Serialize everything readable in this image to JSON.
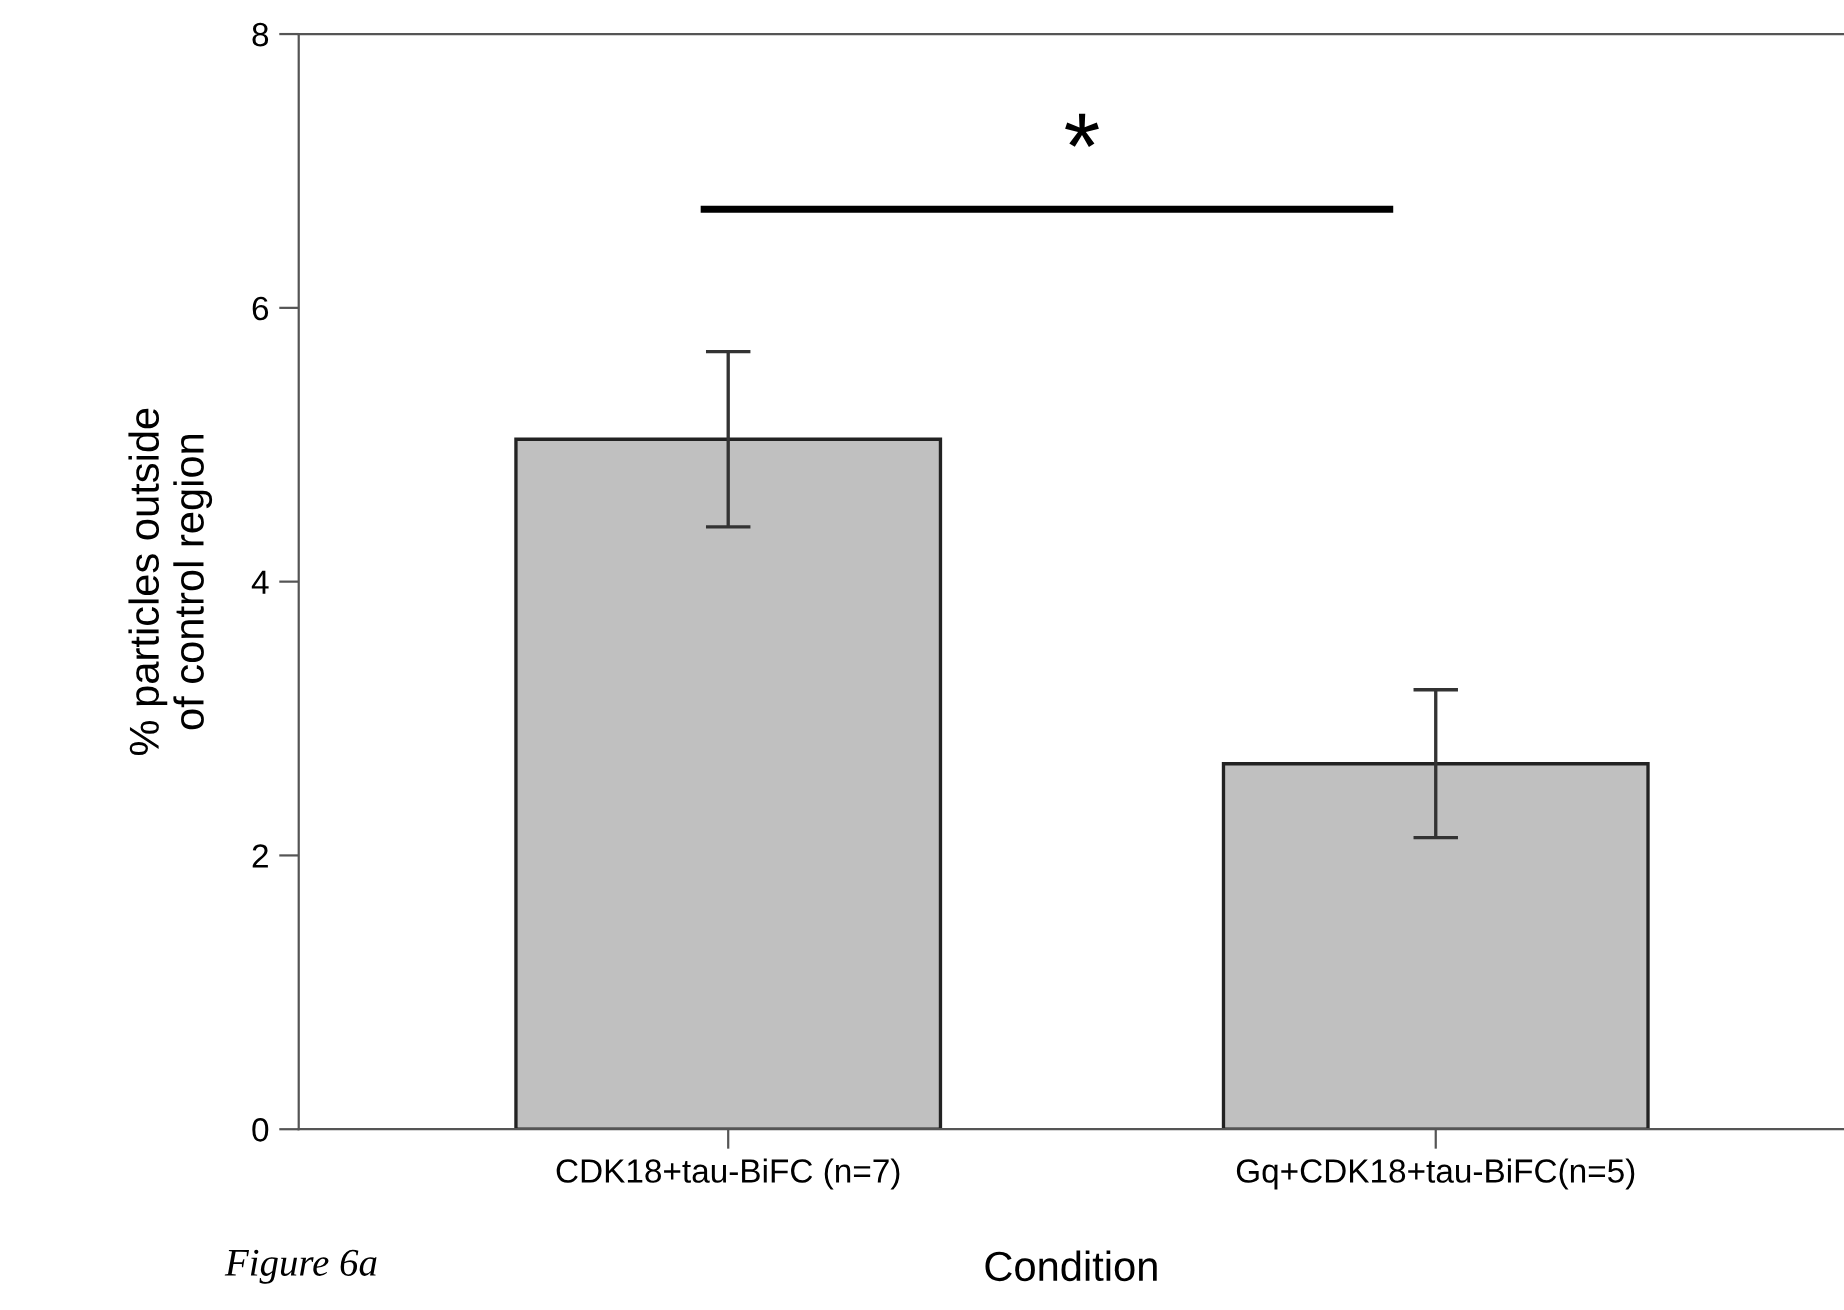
{
  "chart_data": {
    "type": "bar",
    "xlabel": "Condition",
    "ylabel": "% particles outside\nof control region",
    "categories": [
      "CDK18+tau-BiFC (n=7)",
      "Gq+CDK18+tau-BiFC(n=5)"
    ],
    "values": [
      5.04,
      2.67
    ],
    "errors": [
      0.64,
      0.54
    ],
    "color": "#c0c0c0",
    "ylim": [
      0,
      8
    ],
    "yticks": [
      0,
      2,
      4,
      6,
      8
    ],
    "grid": false,
    "annotations": [
      "*",
      "Figure 6a"
    ]
  }
}
